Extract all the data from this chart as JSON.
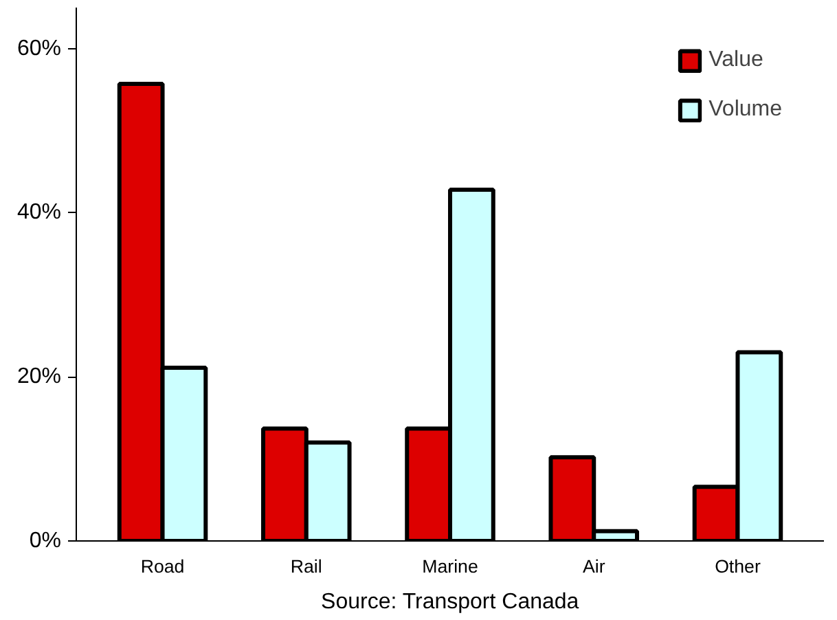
{
  "chart_data": {
    "type": "bar",
    "categories": [
      "Road",
      "Rail",
      "Marine",
      "Air",
      "Other"
    ],
    "series": [
      {
        "name": "Value",
        "color": "#dd0000",
        "values": [
          55.7,
          13.7,
          13.7,
          10.2,
          6.6
        ]
      },
      {
        "name": "Volume",
        "color": "#ccffff",
        "values": [
          21.1,
          12.0,
          42.8,
          1.2,
          23.0
        ]
      }
    ],
    "ylim": [
      0,
      65
    ],
    "yticks": [
      {
        "value": 0,
        "label": "0%"
      },
      {
        "value": 20,
        "label": "20%"
      },
      {
        "value": 40,
        "label": "40%"
      },
      {
        "value": 60,
        "label": "60%"
      }
    ],
    "grid": false,
    "legend": "top right",
    "annotations": [
      "Source: Transport Canada"
    ]
  }
}
